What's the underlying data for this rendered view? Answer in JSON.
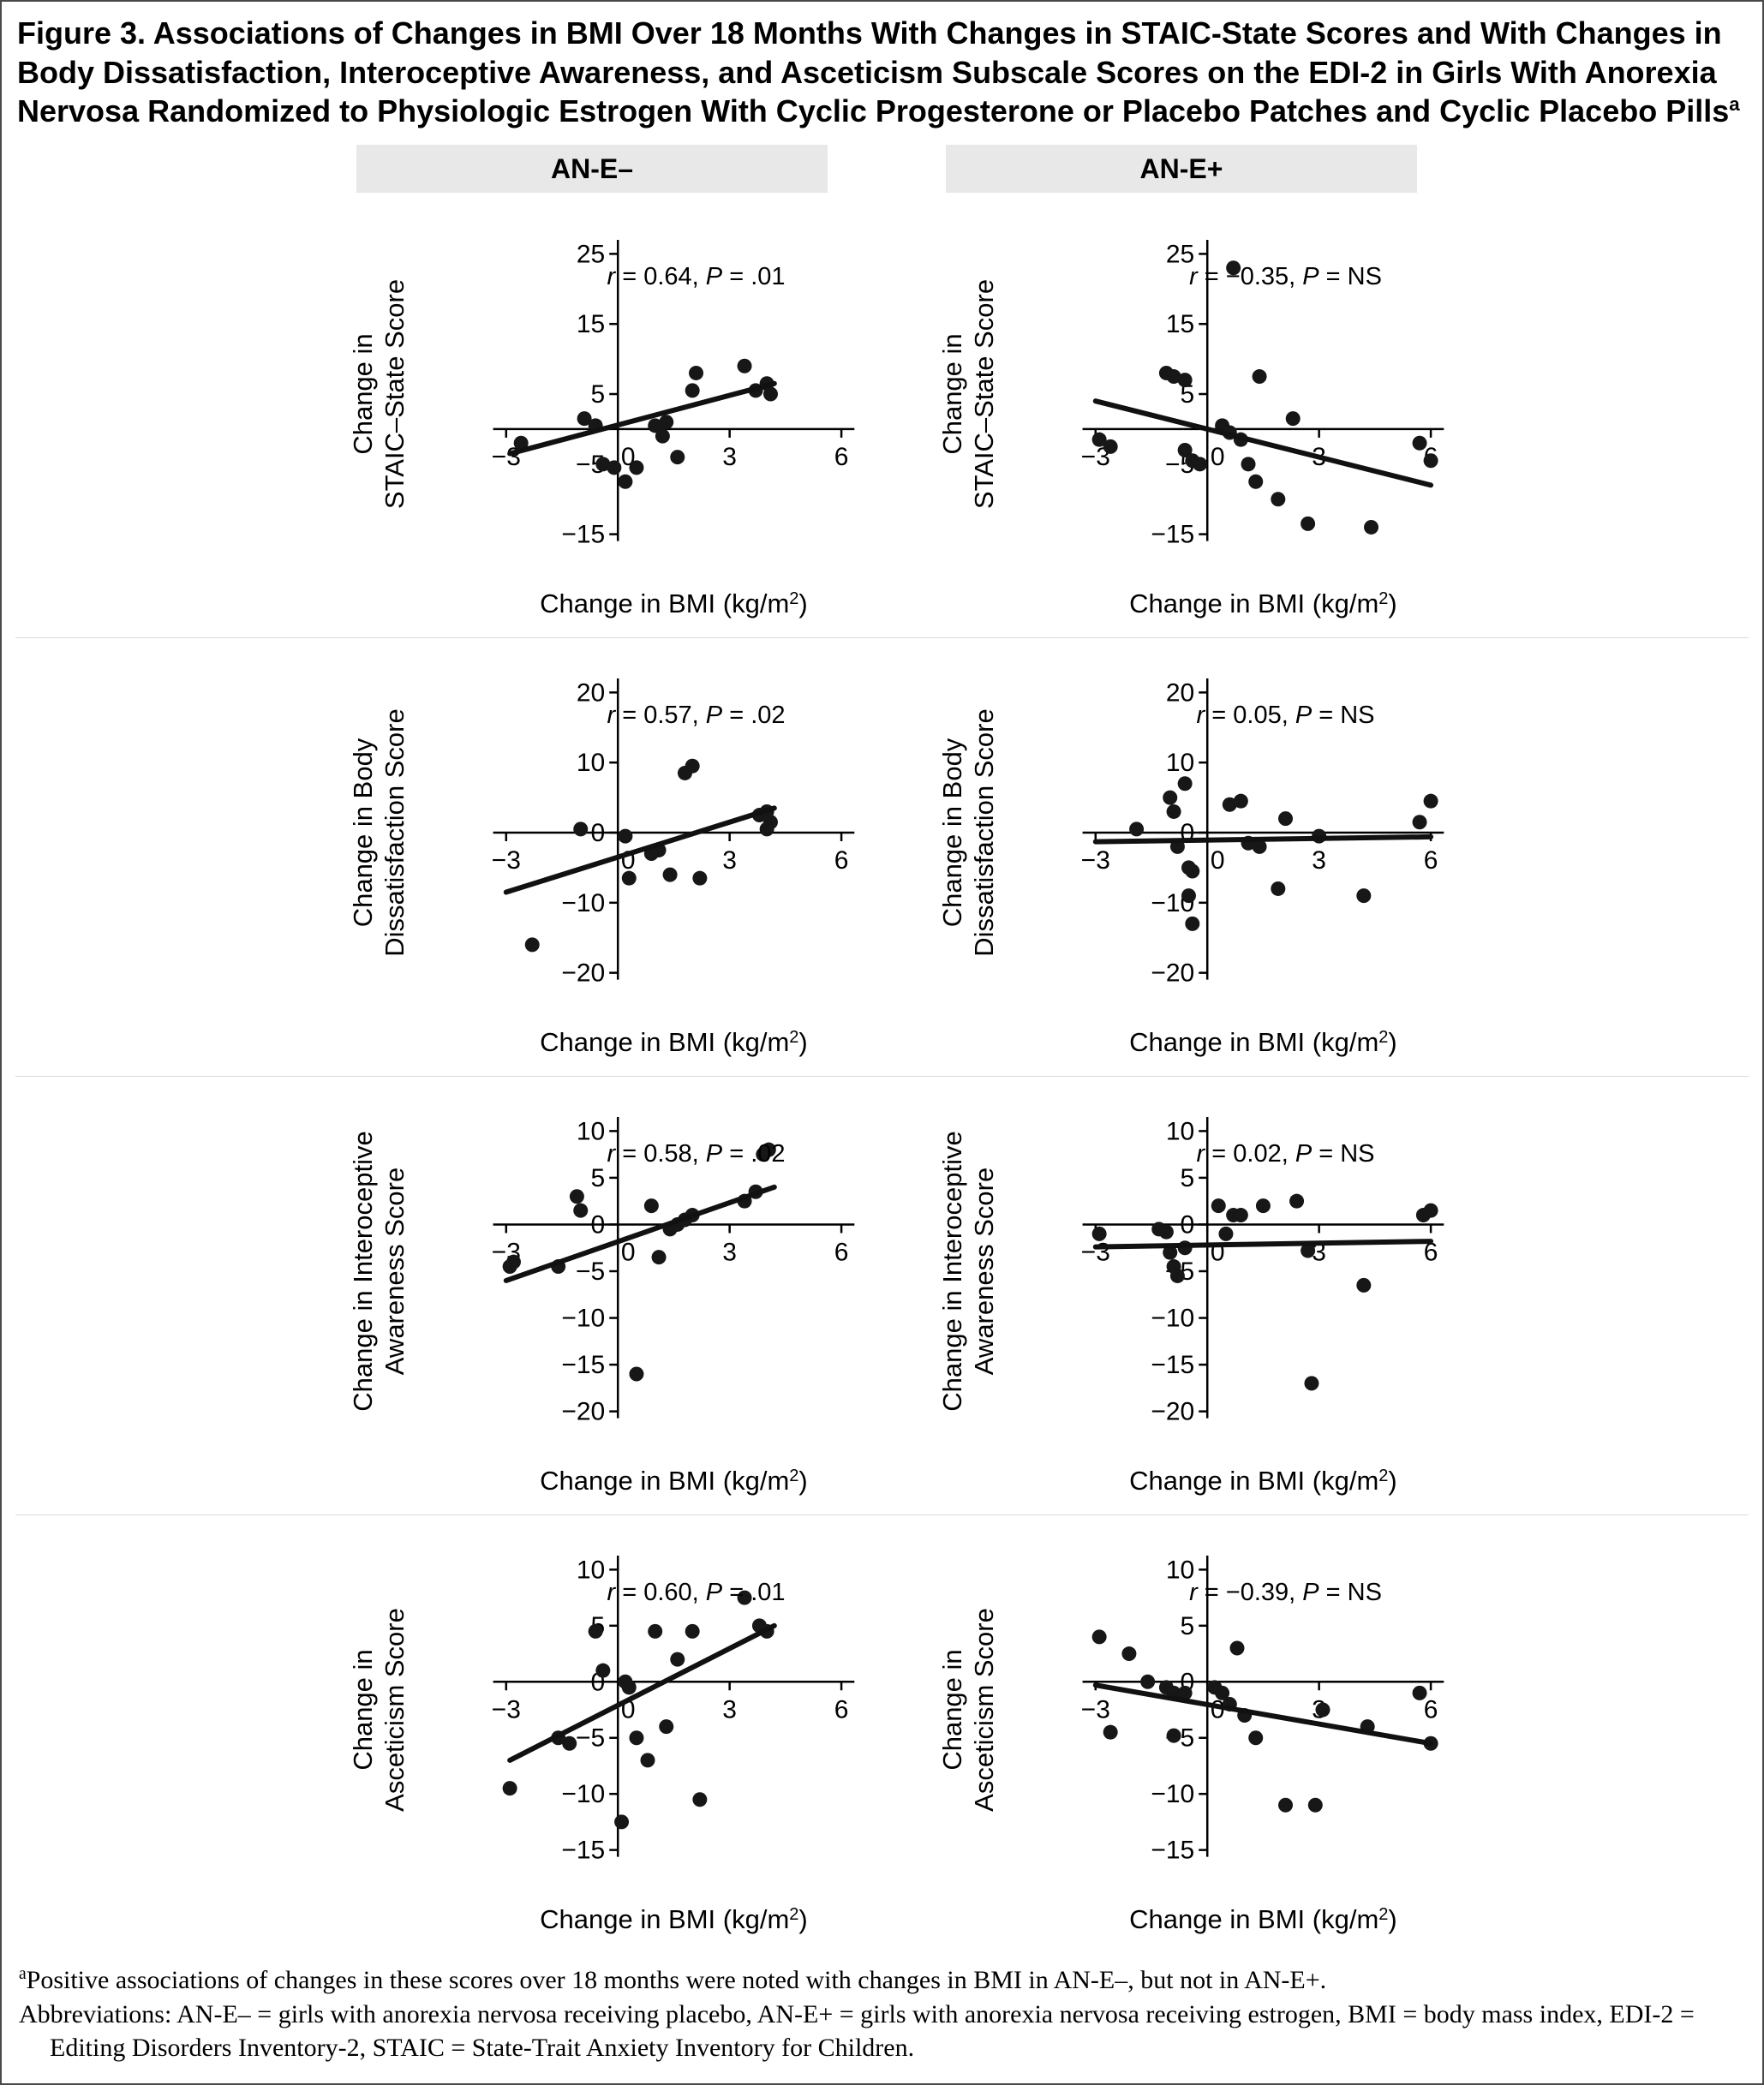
{
  "figure": {
    "title": "Figure 3. Associations of Changes in BMI Over 18 Months With Changes in STAIC-State Scores and With Changes in Body Dissatisfaction, Interoceptive Awareness, and Asceticism Subscale Scores on the EDI-2 in Girls With Anorexia Nervosa Randomized to Physiologic Estrogen With Cyclic Progesterone or Placebo Patches and Cyclic Placebo Pills",
    "title_sup": "a",
    "col_headers": [
      "AN-E–",
      "AN-E+"
    ],
    "footnote_a_sup": "a",
    "footnote_a": "Positive associations of changes in these scores over 18 months were noted with changes in BMI in AN-E–, but not in AN-E+.",
    "footnote_abbrev": "Abbreviations: AN-E– = girls with anorexia nervosa receiving placebo, AN-E+ = girls with anorexia nervosa receiving estrogen, BMI = body mass index, EDI-2 = Editing Disorders Inventory-2, STAIC = State-Trait Anxiety Inventory for Children."
  },
  "xlabel": {
    "pre": "Change in BMI (kg/m",
    "sup": "2",
    "post": ")"
  },
  "chart_data": [
    {
      "type": "scatter",
      "panel": "AN-E–",
      "ylabel": [
        "Change in",
        "STAIC–State Score"
      ],
      "xlabel": "Change in BMI (kg/m²)",
      "r": "0.64",
      "p": ".01",
      "xlim": [
        -3,
        6
      ],
      "x_ticks": [
        -3,
        0,
        3,
        6
      ],
      "ylim": [
        -15,
        25
      ],
      "y_ticks": [
        -15,
        -5,
        5,
        15,
        25
      ],
      "trend": [
        -2.9,
        -3.5,
        4.2,
        6.5
      ],
      "points": [
        [
          -2.6,
          -2
        ],
        [
          -0.9,
          1.5
        ],
        [
          -0.6,
          0.5
        ],
        [
          -0.4,
          -5
        ],
        [
          -0.1,
          -5.5
        ],
        [
          0.2,
          -7.5
        ],
        [
          0.5,
          -5.5
        ],
        [
          1.0,
          0.5
        ],
        [
          1.2,
          -1
        ],
        [
          1.3,
          1
        ],
        [
          1.6,
          -4
        ],
        [
          2.0,
          5.5
        ],
        [
          2.1,
          8
        ],
        [
          3.4,
          9
        ],
        [
          3.7,
          5.5
        ],
        [
          4.0,
          6.5
        ],
        [
          4.1,
          5
        ]
      ]
    },
    {
      "type": "scatter",
      "panel": "AN-E+",
      "ylabel": [
        "Change in",
        "STAIC–State Score"
      ],
      "xlabel": "Change in BMI (kg/m²)",
      "r": "−0.35",
      "p": "NS",
      "xlim": [
        -3,
        6
      ],
      "x_ticks": [
        -3,
        0,
        3,
        6
      ],
      "ylim": [
        -15,
        25
      ],
      "y_ticks": [
        -15,
        -5,
        5,
        15,
        25
      ],
      "trend": [
        -3,
        4,
        6,
        -8
      ],
      "points": [
        [
          0.7,
          23
        ],
        [
          -2.9,
          -1.5
        ],
        [
          -2.6,
          -2.5
        ],
        [
          -1.1,
          8
        ],
        [
          -0.9,
          7.5
        ],
        [
          -0.6,
          7
        ],
        [
          -0.6,
          -3
        ],
        [
          -0.4,
          -4.5
        ],
        [
          -0.2,
          -5
        ],
        [
          0.4,
          0.5
        ],
        [
          0.6,
          -0.5
        ],
        [
          0.9,
          -1.5
        ],
        [
          1.1,
          -5
        ],
        [
          1.4,
          7.5
        ],
        [
          1.3,
          -7.5
        ],
        [
          1.9,
          -10
        ],
        [
          2.3,
          1.5
        ],
        [
          2.7,
          -13.5
        ],
        [
          4.4,
          -14
        ],
        [
          5.7,
          -2
        ],
        [
          6.0,
          -4.5
        ]
      ]
    },
    {
      "type": "scatter",
      "panel": "AN-E–",
      "ylabel": [
        "Change in Body",
        "Dissatisfaction Score"
      ],
      "xlabel": "Change in BMI (kg/m²)",
      "r": "0.57",
      "p": ".02",
      "xlim": [
        -3,
        6
      ],
      "x_ticks": [
        -3,
        0,
        3,
        6
      ],
      "ylim": [
        -20,
        20
      ],
      "y_ticks": [
        -20,
        -10,
        0,
        10,
        20
      ],
      "trend": [
        -3,
        -8.5,
        4.2,
        3.5
      ],
      "points": [
        [
          -2.3,
          -16
        ],
        [
          -1.0,
          0.5
        ],
        [
          0.2,
          -0.5
        ],
        [
          0.3,
          -6.5
        ],
        [
          0.9,
          -3
        ],
        [
          1.1,
          -2.5
        ],
        [
          1.4,
          -6
        ],
        [
          1.8,
          8.5
        ],
        [
          2.0,
          9.5
        ],
        [
          2.2,
          -6.5
        ],
        [
          3.8,
          2.5
        ],
        [
          4.0,
          3
        ],
        [
          4.1,
          1.5
        ],
        [
          4.0,
          0.5
        ]
      ]
    },
    {
      "type": "scatter",
      "panel": "AN-E+",
      "ylabel": [
        "Change in Body",
        "Dissatisfaction Score"
      ],
      "xlabel": "Change in BMI (kg/m²)",
      "r": "0.05",
      "p": "NS",
      "xlim": [
        -3,
        6
      ],
      "x_ticks": [
        -3,
        0,
        3,
        6
      ],
      "ylim": [
        -20,
        20
      ],
      "y_ticks": [
        -20,
        -10,
        0,
        10,
        20
      ],
      "trend": [
        -3,
        -1.3,
        6,
        -0.6
      ],
      "points": [
        [
          -1.9,
          0.5
        ],
        [
          -1.0,
          5
        ],
        [
          -0.9,
          3
        ],
        [
          -0.8,
          -2
        ],
        [
          -0.6,
          7
        ],
        [
          -0.5,
          -5
        ],
        [
          -0.4,
          -5.5
        ],
        [
          -0.5,
          -9
        ],
        [
          -0.4,
          -13
        ],
        [
          0.6,
          4
        ],
        [
          0.9,
          4.5
        ],
        [
          1.1,
          -1.5
        ],
        [
          1.4,
          -2
        ],
        [
          2.1,
          2
        ],
        [
          1.9,
          -8
        ],
        [
          3.0,
          -0.5
        ],
        [
          4.2,
          -9
        ],
        [
          5.7,
          1.5
        ],
        [
          6.0,
          4.5
        ]
      ]
    },
    {
      "type": "scatter",
      "panel": "AN-E–",
      "ylabel": [
        "Change in Interoceptive",
        "Awareness Score"
      ],
      "xlabel": "Change in BMI (kg/m²)",
      "r": "0.58",
      "p": ".02",
      "xlim": [
        -3,
        6
      ],
      "x_ticks": [
        -3,
        0,
        3,
        6
      ],
      "ylim": [
        -20,
        10
      ],
      "y_ticks": [
        -20,
        -15,
        -10,
        -5,
        0,
        5,
        10
      ],
      "trend": [
        -3,
        -6,
        4.2,
        4
      ],
      "points": [
        [
          -2.9,
          -4.5
        ],
        [
          -2.8,
          -4
        ],
        [
          -1.6,
          -4.5
        ],
        [
          -1.1,
          3
        ],
        [
          -1.0,
          1.5
        ],
        [
          0.5,
          -16
        ],
        [
          0.9,
          2
        ],
        [
          1.1,
          -3.5
        ],
        [
          1.4,
          -0.5
        ],
        [
          1.6,
          0
        ],
        [
          1.8,
          0.5
        ],
        [
          2.0,
          1
        ],
        [
          3.4,
          2.5
        ],
        [
          3.7,
          3.5
        ],
        [
          3.9,
          7.5
        ],
        [
          4.05,
          8
        ]
      ]
    },
    {
      "type": "scatter",
      "panel": "AN-E+",
      "ylabel": [
        "Change in Interoceptive",
        "Awareness Score"
      ],
      "xlabel": "Change in BMI (kg/m²)",
      "r": "0.02",
      "p": "NS",
      "xlim": [
        -3,
        6
      ],
      "x_ticks": [
        -3,
        0,
        3,
        6
      ],
      "ylim": [
        -20,
        10
      ],
      "y_ticks": [
        -20,
        -15,
        -10,
        -5,
        0,
        5,
        10
      ],
      "trend": [
        -3,
        -2.4,
        6,
        -1.8
      ],
      "points": [
        [
          -2.9,
          -1
        ],
        [
          -1.3,
          -0.5
        ],
        [
          -1.1,
          -0.8
        ],
        [
          -1.0,
          -3
        ],
        [
          -0.9,
          -4.5
        ],
        [
          -0.8,
          -5.5
        ],
        [
          -0.6,
          -2.5
        ],
        [
          0.3,
          2
        ],
        [
          0.5,
          -1
        ],
        [
          0.7,
          1
        ],
        [
          0.9,
          1
        ],
        [
          1.5,
          2
        ],
        [
          2.4,
          2.5
        ],
        [
          2.7,
          -2.8
        ],
        [
          2.8,
          -17
        ],
        [
          4.2,
          -6.5
        ],
        [
          5.8,
          1
        ],
        [
          6.0,
          1.5
        ]
      ]
    },
    {
      "type": "scatter",
      "panel": "AN-E–",
      "ylabel": [
        "Change in",
        "Asceticism Score"
      ],
      "xlabel": "Change in BMI (kg/m²)",
      "r": "0.60",
      "p": ".01",
      "xlim": [
        -3,
        6
      ],
      "x_ticks": [
        -3,
        0,
        3,
        6
      ],
      "ylim": [
        -15,
        10
      ],
      "y_ticks": [
        -15,
        -10,
        -5,
        0,
        5,
        10
      ],
      "trend": [
        -2.9,
        -7,
        4.2,
        5
      ],
      "points": [
        [
          -2.9,
          -9.5
        ],
        [
          -1.6,
          -5
        ],
        [
          -1.3,
          -5.5
        ],
        [
          -0.6,
          4.5
        ],
        [
          -0.4,
          1
        ],
        [
          0.1,
          -12.5
        ],
        [
          0.2,
          0
        ],
        [
          0.3,
          -0.5
        ],
        [
          0.5,
          -5
        ],
        [
          0.8,
          -7
        ],
        [
          1.0,
          4.5
        ],
        [
          1.3,
          -4
        ],
        [
          1.6,
          2
        ],
        [
          2.0,
          4.5
        ],
        [
          2.2,
          -10.5
        ],
        [
          3.4,
          7.5
        ],
        [
          3.8,
          5
        ],
        [
          4.0,
          4.5
        ]
      ]
    },
    {
      "type": "scatter",
      "panel": "AN-E+",
      "ylabel": [
        "Change in",
        "Asceticism Score"
      ],
      "xlabel": "Change in BMI (kg/m²)",
      "r": "−0.39",
      "p": "NS",
      "xlim": [
        -3,
        6
      ],
      "x_ticks": [
        -3,
        0,
        3,
        6
      ],
      "ylim": [
        -15,
        10
      ],
      "y_ticks": [
        -15,
        -10,
        -5,
        0,
        5,
        10
      ],
      "trend": [
        -3,
        -0.3,
        6,
        -5.5
      ],
      "points": [
        [
          -2.9,
          4
        ],
        [
          -2.6,
          -4.5
        ],
        [
          -2.1,
          2.5
        ],
        [
          -1.6,
          0
        ],
        [
          -1.1,
          -0.5
        ],
        [
          -0.9,
          -1
        ],
        [
          -0.9,
          -4.8
        ],
        [
          -0.6,
          -1
        ],
        [
          0.2,
          -0.5
        ],
        [
          0.4,
          -1
        ],
        [
          0.6,
          -2
        ],
        [
          0.8,
          3
        ],
        [
          1.0,
          -3
        ],
        [
          1.3,
          -5
        ],
        [
          2.1,
          -11
        ],
        [
          2.9,
          -11
        ],
        [
          3.1,
          -2.5
        ],
        [
          4.3,
          -4
        ],
        [
          5.7,
          -1
        ],
        [
          6.0,
          -5.5
        ]
      ]
    }
  ]
}
